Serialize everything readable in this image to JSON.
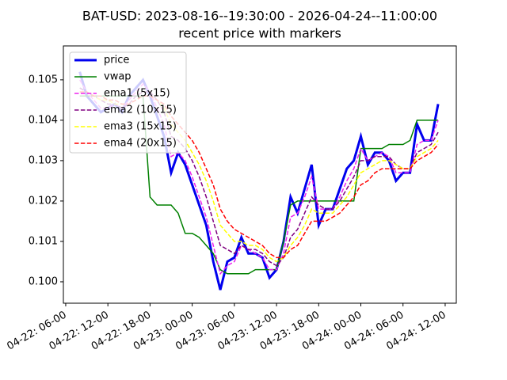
{
  "chart_data": {
    "type": "line",
    "title": "BAT-USD: 2023-08-16--19:30:00 - 2026-04-24--11:00:00",
    "subtitle": "recent price with markers",
    "x": [
      "04-22: 08-00",
      "04-22: 09-00",
      "04-22: 10-00",
      "04-22: 11-00",
      "04-22: 12-00",
      "04-22: 13-00",
      "04-22: 14-00",
      "04-22: 15-00",
      "04-22: 16-00",
      "04-22: 17-00",
      "04-22: 18-00",
      "04-22: 19-00",
      "04-22: 20-00",
      "04-22: 21-00",
      "04-22: 22-00",
      "04-22: 23-00",
      "04-23: 00-00",
      "04-23: 01-00",
      "04-23: 02-00",
      "04-23: 03-00",
      "04-23: 04-00",
      "04-23: 05-00",
      "04-23: 06-00",
      "04-23: 07-00",
      "04-23: 08-00",
      "04-23: 09-00",
      "04-23: 10-00",
      "04-23: 11-00",
      "04-23: 12-00",
      "04-23: 13-00",
      "04-23: 14-00",
      "04-23: 15-00",
      "04-23: 16-00",
      "04-23: 17-00",
      "04-23: 18-00",
      "04-23: 19-00",
      "04-23: 20-00",
      "04-23: 21-00",
      "04-23: 22-00",
      "04-23: 23-00",
      "04-24: 00-00",
      "04-24: 01-00",
      "04-24: 02-00",
      "04-24: 03-00",
      "04-24: 04-00",
      "04-24: 05-00",
      "04-24: 06-00",
      "04-24: 07-00",
      "04-24: 08-00",
      "04-24: 09-00",
      "04-24: 10-00",
      "04-24: 11-00"
    ],
    "series": [
      {
        "name": "price",
        "color": "#0000ee",
        "width": 3,
        "dash": false,
        "values": [
          0.1052,
          0.1046,
          0.1044,
          0.1042,
          0.1043,
          0.1044,
          0.1042,
          0.1046,
          0.1048,
          0.105,
          0.1046,
          0.1041,
          0.1036,
          0.1027,
          0.1032,
          0.1029,
          0.1024,
          0.1019,
          0.1014,
          0.1005,
          0.0998,
          0.1005,
          0.1006,
          0.1011,
          0.1007,
          0.1007,
          0.1006,
          0.1001,
          0.1003,
          0.101,
          0.1021,
          0.1017,
          0.1023,
          0.1029,
          0.1014,
          0.1018,
          0.1018,
          0.1023,
          0.1028,
          0.103,
          0.1036,
          0.1029,
          0.1032,
          0.1032,
          0.103,
          0.1025,
          0.1027,
          0.1027,
          0.1039,
          0.1035,
          0.1035,
          0.1044
        ]
      },
      {
        "name": "vwap",
        "color": "#008000",
        "width": 1.5,
        "dash": false,
        "values": [
          0.1046,
          0.1046,
          0.1046,
          0.1046,
          0.1046,
          0.1046,
          0.1046,
          0.1046,
          0.1046,
          0.1046,
          0.1021,
          0.1019,
          0.1019,
          0.1019,
          0.1017,
          0.1012,
          0.1012,
          0.1011,
          0.1009,
          0.1007,
          0.1003,
          0.1002,
          0.1002,
          0.1002,
          0.1002,
          0.1003,
          0.1003,
          0.1003,
          0.1003,
          0.101,
          0.1019,
          0.102,
          0.102,
          0.102,
          0.102,
          0.102,
          0.102,
          0.102,
          0.102,
          0.102,
          0.1033,
          0.1033,
          0.1033,
          0.1033,
          0.1034,
          0.1034,
          0.1034,
          0.1035,
          0.104,
          0.104,
          0.104,
          0.104
        ]
      },
      {
        "name": "ema1 (5x15)",
        "color": "#ee22ee",
        "width": 1.5,
        "dash": true,
        "values": [
          0.105,
          0.1047,
          0.1045,
          0.1043,
          0.1043,
          0.1044,
          0.1043,
          0.1045,
          0.1047,
          0.1049,
          0.1047,
          0.1043,
          0.1039,
          0.1031,
          0.1032,
          0.103,
          0.1026,
          0.1021,
          0.1016,
          0.1009,
          0.1002,
          0.1004,
          0.1005,
          0.1009,
          0.1008,
          0.1007,
          0.1006,
          0.1003,
          0.1003,
          0.1007,
          0.1016,
          0.1017,
          0.1021,
          0.1026,
          0.1018,
          0.1018,
          0.1018,
          0.1021,
          0.1025,
          0.1028,
          0.1033,
          0.103,
          0.1031,
          0.1032,
          0.1031,
          0.1027,
          0.1027,
          0.1027,
          0.1034,
          0.1035,
          0.1035,
          0.104
        ]
      },
      {
        "name": "ema2 (10x15)",
        "color": "#800080",
        "width": 1.5,
        "dash": true,
        "values": [
          0.1048,
          0.1047,
          0.1046,
          0.1045,
          0.1044,
          0.1044,
          0.1043,
          0.1044,
          0.1046,
          0.1047,
          0.1047,
          0.1045,
          0.1042,
          0.1036,
          0.1035,
          0.1033,
          0.103,
          0.1026,
          0.1021,
          0.1015,
          0.1009,
          0.1008,
          0.1007,
          0.1009,
          0.1008,
          0.1008,
          0.1007,
          0.1005,
          0.1004,
          0.1006,
          0.1011,
          0.1013,
          0.1017,
          0.1021,
          0.1019,
          0.1018,
          0.1018,
          0.102,
          0.1023,
          0.1026,
          0.103,
          0.103,
          0.1031,
          0.1031,
          0.1031,
          0.1029,
          0.1028,
          0.1028,
          0.1032,
          0.1033,
          0.1034,
          0.1037
        ]
      },
      {
        "name": "ema3 (15x15)",
        "color": "#ffff00",
        "width": 1.5,
        "dash": true,
        "values": [
          0.1047,
          0.1047,
          0.1046,
          0.1045,
          0.1045,
          0.1044,
          0.1044,
          0.1044,
          0.1045,
          0.1046,
          0.1046,
          0.1045,
          0.1043,
          0.1039,
          0.1037,
          0.1035,
          0.1032,
          0.1029,
          0.1025,
          0.102,
          0.1014,
          0.1012,
          0.101,
          0.101,
          0.1009,
          0.1009,
          0.1008,
          0.1006,
          0.1005,
          0.1006,
          0.1009,
          0.1011,
          0.1014,
          0.1018,
          0.1017,
          0.1017,
          0.1017,
          0.1019,
          0.1021,
          0.1024,
          0.1027,
          0.1028,
          0.1029,
          0.103,
          0.103,
          0.1029,
          0.1028,
          0.1028,
          0.1031,
          0.1032,
          0.1033,
          0.1035
        ]
      },
      {
        "name": "ema4 (20x15)",
        "color": "#ff0000",
        "width": 1.5,
        "dash": true,
        "values": [
          0.1047,
          0.1047,
          0.1046,
          0.1046,
          0.1045,
          0.1045,
          0.1044,
          0.1044,
          0.1045,
          0.1046,
          0.1046,
          0.1045,
          0.1044,
          0.1041,
          0.1039,
          0.1037,
          0.1035,
          0.1032,
          0.1028,
          0.1024,
          0.1018,
          0.1015,
          0.1013,
          0.1012,
          0.1011,
          0.101,
          0.1009,
          0.1007,
          0.1006,
          0.1006,
          0.1008,
          0.1009,
          0.1012,
          0.1015,
          0.1015,
          0.1015,
          0.1016,
          0.1017,
          0.1019,
          0.1021,
          0.1024,
          0.1025,
          0.1027,
          0.1028,
          0.1028,
          0.1028,
          0.1028,
          0.1028,
          0.103,
          0.1031,
          0.1032,
          0.1034
        ]
      }
    ],
    "xlim": [
      "04-22: 05-40",
      "04-24: 13-35"
    ],
    "xticks": [
      "04-22: 06-00",
      "04-22: 12-00",
      "04-22: 18-00",
      "04-23: 00-00",
      "04-23: 06-00",
      "04-23: 12-00",
      "04-23: 18-00",
      "04-24: 00-00",
      "04-24: 06-00",
      "04-24: 12-00"
    ],
    "ylim": [
      0.09947,
      0.10584
    ],
    "yticks": [
      {
        "value": 0.1,
        "label": "0.100"
      },
      0.101,
      0.102,
      0.103,
      0.104,
      0.105
    ],
    "legend": "upper left"
  }
}
